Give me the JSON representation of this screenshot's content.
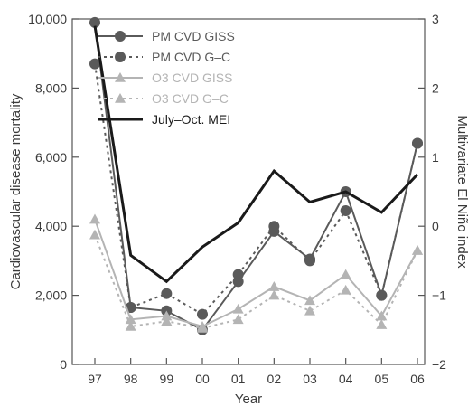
{
  "chart_data": {
    "type": "line",
    "xlabel": "Year",
    "ylabel": "Cardiovascular disease mortality",
    "y2label": "Multivariate El Niño index",
    "categories": [
      "97",
      "98",
      "99",
      "00",
      "01",
      "02",
      "03",
      "04",
      "05",
      "06"
    ],
    "ylim": [
      0,
      10000
    ],
    "y2lim": [
      -2,
      3
    ],
    "yticks": [
      "0",
      "2,000",
      "4,000",
      "6,000",
      "8,000",
      "10,000"
    ],
    "y2ticks": [
      "−2",
      "−1",
      "0",
      "1",
      "2",
      "3"
    ],
    "grid": false,
    "legend_position": "top-left",
    "series": [
      {
        "name": "PM CVD GISS",
        "axis": "left",
        "color": "#5a5a5a",
        "dash": "solid",
        "marker": "circle",
        "values": [
          9900,
          1650,
          1550,
          1000,
          2400,
          3850,
          3050,
          5000,
          2000,
          6400
        ]
      },
      {
        "name": "PM CVD G–C",
        "axis": "left",
        "color": "#5a5a5a",
        "dash": "dotted",
        "marker": "circle",
        "values": [
          8700,
          1650,
          2050,
          1450,
          2600,
          4000,
          3000,
          4450,
          2000,
          6400
        ]
      },
      {
        "name": "O3 CVD GISS",
        "axis": "left",
        "color": "#b4b4b4",
        "dash": "solid",
        "marker": "triangle",
        "values": [
          4200,
          1300,
          1400,
          1100,
          1600,
          2250,
          1850,
          2600,
          1400,
          3300
        ]
      },
      {
        "name": "O3 CVD G–C",
        "axis": "left",
        "color": "#b4b4b4",
        "dash": "dotted",
        "marker": "triangle",
        "values": [
          3750,
          1100,
          1250,
          1050,
          1300,
          2000,
          1550,
          2150,
          1150,
          3300
        ]
      },
      {
        "name": "July–Oct. MEI",
        "axis": "right",
        "color": "#1a1a1a",
        "dash": "solid",
        "marker": "none",
        "values": [
          2.9,
          -0.42,
          -0.8,
          -0.3,
          0.05,
          0.8,
          0.35,
          0.5,
          0.2,
          0.75
        ]
      }
    ]
  }
}
